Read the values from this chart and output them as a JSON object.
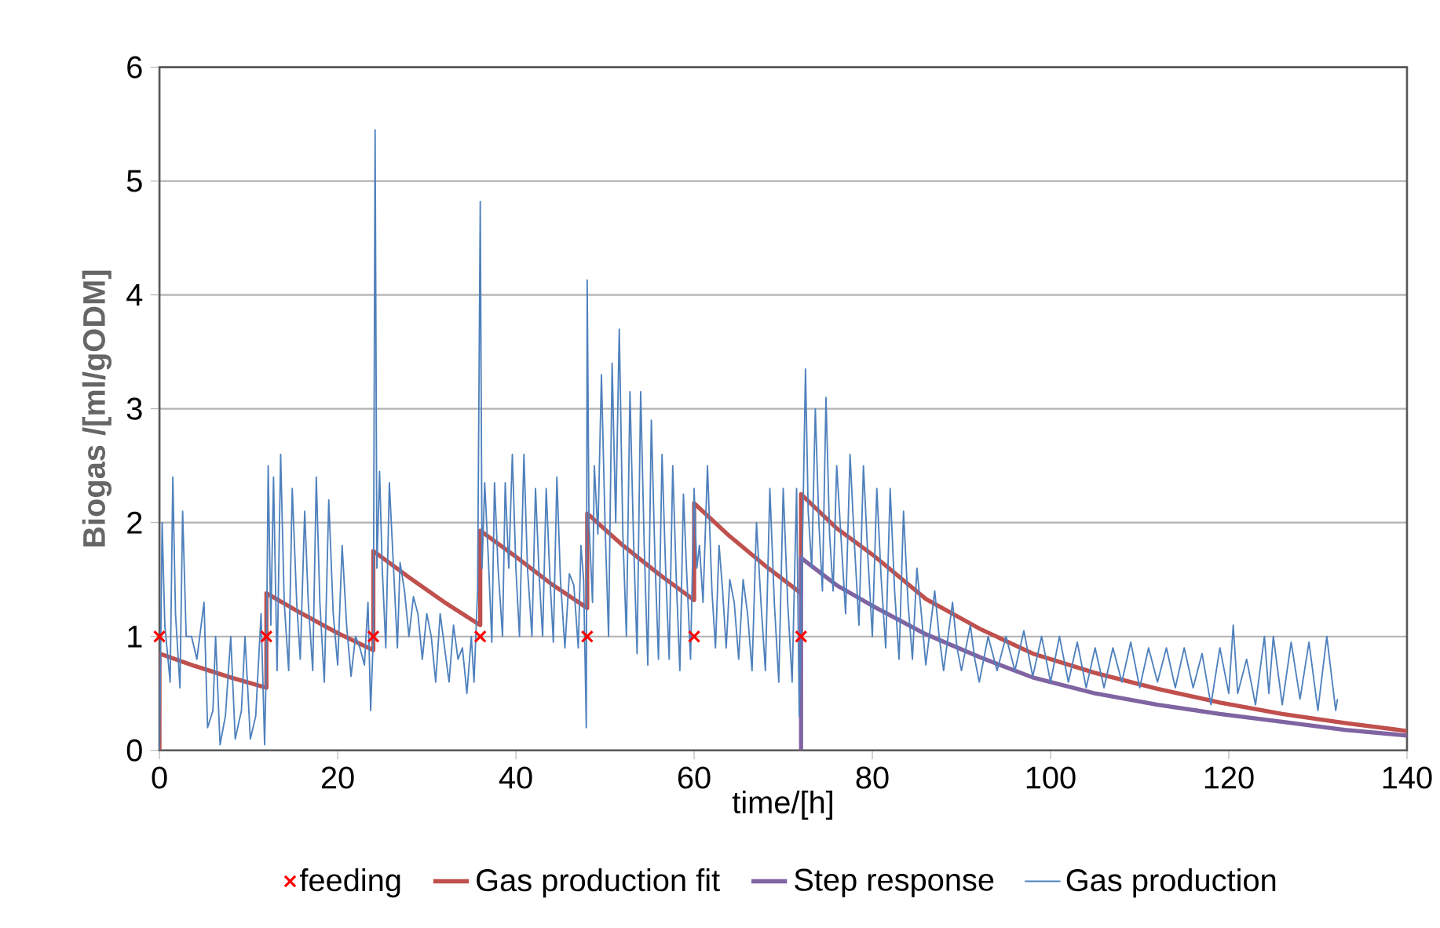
{
  "chart_data": {
    "type": "line",
    "xlabel": "time/[h]",
    "ylabel": "Biogas /[ml/gODM]",
    "xlim": [
      0,
      140
    ],
    "xticks": [
      0,
      20,
      40,
      60,
      80,
      100,
      120,
      140
    ],
    "ylim": [
      0,
      6
    ],
    "yticks": [
      0,
      1,
      2,
      3,
      4,
      5,
      6
    ],
    "grid": "y",
    "legend": "bottom",
    "series": [
      {
        "name": "feeding",
        "type": "scatter",
        "marker": "cross",
        "color": "#ff0000",
        "x": [
          0,
          12,
          24,
          36,
          48,
          60,
          72
        ],
        "values": [
          1,
          1,
          1,
          1,
          1,
          1,
          1
        ]
      },
      {
        "name": "Gas production fit",
        "color": "#c0504d",
        "x": [
          0,
          0,
          4,
          8,
          12,
          12,
          16,
          20,
          24,
          24,
          28,
          32,
          36,
          36,
          40,
          44,
          48,
          48,
          52,
          56,
          60,
          60,
          64,
          68,
          72,
          72,
          76,
          80,
          86,
          92,
          98,
          105,
          112,
          119,
          126,
          133,
          140
        ],
        "values": [
          0,
          0.85,
          0.74,
          0.64,
          0.55,
          1.38,
          1.2,
          1.03,
          0.88,
          1.75,
          1.52,
          1.3,
          1.1,
          1.93,
          1.7,
          1.46,
          1.25,
          2.08,
          1.8,
          1.55,
          1.32,
          2.17,
          1.88,
          1.62,
          1.38,
          2.25,
          1.95,
          1.72,
          1.33,
          1.07,
          0.85,
          0.68,
          0.54,
          0.42,
          0.32,
          0.24,
          0.17
        ]
      },
      {
        "name": "Step response",
        "color": "#8064a2",
        "x": [
          72,
          72,
          76,
          80,
          86,
          92,
          98,
          105,
          112,
          119,
          126,
          133,
          140
        ],
        "values": [
          0,
          1.69,
          1.45,
          1.27,
          1.02,
          0.82,
          0.64,
          0.5,
          0.4,
          0.32,
          0.25,
          0.18,
          0.13
        ]
      },
      {
        "name": "Gas production",
        "color": "#4f81bd",
        "x": [
          0,
          0.3,
          0.6,
          1.2,
          1.5,
          1.8,
          2.3,
          2.6,
          3.0,
          3.6,
          4.2,
          5.0,
          5.4,
          6.0,
          6.3,
          6.8,
          7.4,
          8.0,
          8.5,
          9.2,
          9.6,
          10.2,
          10.8,
          11.4,
          11.8,
          12.0,
          12.2,
          12.5,
          12.8,
          13.2,
          13.6,
          14.0,
          14.5,
          14.9,
          15.4,
          15.8,
          16.3,
          16.7,
          17.2,
          17.6,
          18.0,
          18.5,
          19.0,
          19.5,
          20.0,
          20.5,
          21.0,
          21.5,
          22.0,
          22.5,
          23.0,
          23.4,
          23.7,
          24.0,
          24.2,
          24.4,
          24.7,
          25.0,
          25.4,
          25.8,
          26.3,
          26.7,
          27.0,
          27.5,
          28.0,
          28.5,
          29.0,
          29.5,
          30.0,
          30.5,
          31.0,
          31.5,
          32.0,
          32.5,
          33.0,
          33.5,
          34.0,
          34.5,
          35.0,
          35.3,
          35.7,
          36.0,
          36.2,
          36.5,
          36.9,
          37.3,
          37.6,
          38.0,
          38.5,
          38.8,
          39.2,
          39.6,
          40.0,
          40.4,
          40.9,
          41.3,
          41.8,
          42.2,
          42.6,
          43.0,
          43.4,
          43.8,
          44.2,
          44.6,
          45.0,
          45.5,
          46.0,
          46.5,
          47.0,
          47.3,
          47.6,
          47.9,
          48.0,
          48.2,
          48.6,
          48.8,
          49.2,
          49.6,
          50.0,
          50.4,
          50.8,
          51.2,
          51.6,
          52.0,
          52.4,
          52.8,
          53.2,
          53.6,
          54.0,
          54.4,
          54.8,
          55.2,
          55.6,
          56.0,
          56.4,
          56.8,
          57.2,
          57.6,
          58.0,
          58.4,
          58.8,
          59.2,
          59.6,
          60.0,
          60.3,
          60.6,
          61.0,
          61.5,
          62.0,
          62.4,
          62.8,
          63.2,
          63.6,
          64.0,
          64.5,
          65.0,
          65.5,
          66.0,
          66.5,
          67.0,
          67.5,
          68.0,
          68.5,
          69.0,
          69.5,
          70.0,
          70.5,
          71.0,
          71.5,
          71.8,
          72.2,
          72.5,
          72.8,
          73.2,
          73.6,
          74.0,
          74.4,
          74.8,
          75.2,
          75.6,
          76.0,
          76.5,
          77.0,
          77.5,
          78.0,
          78.5,
          79.0,
          79.5,
          80.0,
          80.5,
          81.0,
          81.5,
          82.0,
          82.5,
          83.0,
          83.5,
          84.0,
          84.5,
          85.0,
          85.5,
          86.0,
          87.0,
          87.5,
          88.0,
          89.0,
          89.5,
          90.0,
          91.0,
          91.5,
          92.0,
          93.0,
          94.0,
          95.0,
          96.0,
          97.0,
          98.0,
          99.0,
          100.0,
          101.0,
          102.0,
          103,
          104,
          105,
          106,
          107,
          108,
          109,
          110,
          111,
          112,
          113,
          114,
          115,
          116,
          117,
          118,
          119,
          120,
          120.5,
          121,
          122,
          123,
          124,
          124.5,
          125,
          126,
          127,
          128,
          129,
          130,
          131,
          132,
          132.2
        ],
        "values": [
          0,
          2.0,
          1.1,
          0.6,
          2.4,
          1.2,
          0.55,
          2.1,
          1.0,
          1.0,
          0.8,
          1.3,
          0.2,
          0.35,
          1.0,
          0.05,
          0.3,
          1.0,
          0.1,
          0.35,
          1.0,
          0.1,
          0.3,
          1.2,
          0.05,
          0.8,
          2.5,
          1.1,
          2.4,
          0.7,
          2.6,
          1.3,
          0.7,
          2.3,
          1.3,
          0.8,
          2.1,
          1.3,
          0.7,
          2.4,
          1.3,
          0.6,
          2.2,
          1.2,
          0.75,
          1.8,
          1.1,
          0.65,
          1.0,
          0.9,
          0.75,
          1.3,
          0.35,
          1.0,
          5.45,
          1.6,
          2.45,
          1.6,
          0.9,
          2.35,
          1.55,
          0.9,
          1.65,
          1.4,
          1.0,
          1.35,
          1.2,
          0.8,
          1.2,
          1.0,
          0.6,
          1.2,
          0.9,
          0.6,
          1.1,
          0.8,
          0.9,
          0.5,
          1.0,
          0.6,
          1.4,
          4.82,
          1.6,
          2.35,
          1.7,
          0.95,
          2.35,
          1.6,
          1.0,
          2.35,
          1.6,
          2.6,
          1.6,
          1.0,
          2.6,
          1.6,
          1.0,
          2.3,
          1.55,
          1.0,
          2.3,
          1.55,
          0.95,
          2.4,
          1.5,
          0.9,
          1.55,
          1.45,
          0.9,
          1.8,
          1.5,
          0.2,
          4.13,
          2.0,
          1.3,
          2.5,
          1.9,
          3.3,
          2.0,
          1.0,
          3.4,
          2.0,
          3.7,
          1.9,
          1.0,
          3.15,
          1.85,
          0.85,
          3.15,
          1.8,
          0.75,
          2.9,
          1.7,
          0.8,
          2.6,
          1.6,
          0.8,
          2.5,
          1.5,
          0.7,
          2.25,
          1.5,
          0.8,
          2.3,
          1.6,
          1.8,
          1.3,
          2.5,
          1.4,
          0.9,
          1.8,
          1.4,
          0.9,
          1.5,
          1.3,
          0.8,
          1.5,
          1.2,
          0.7,
          2.0,
          1.3,
          0.7,
          2.3,
          1.3,
          0.6,
          2.3,
          1.3,
          0.6,
          2.3,
          0.3,
          2.0,
          3.35,
          2.1,
          1.6,
          3.0,
          2.0,
          1.4,
          3.1,
          1.9,
          1.4,
          2.5,
          1.85,
          1.2,
          2.6,
          1.8,
          1.1,
          2.5,
          1.7,
          1.0,
          2.3,
          1.5,
          0.9,
          2.3,
          1.4,
          0.8,
          2.1,
          1.3,
          0.8,
          1.6,
          1.2,
          0.75,
          1.4,
          1.0,
          0.7,
          1.3,
          0.9,
          0.7,
          1.1,
          0.8,
          0.6,
          1.0,
          0.7,
          1.0,
          0.7,
          1.05,
          0.65,
          1.0,
          0.6,
          1.0,
          0.6,
          0.95,
          0.55,
          0.9,
          0.55,
          0.9,
          0.6,
          0.95,
          0.55,
          0.9,
          0.6,
          0.9,
          0.55,
          0.9,
          0.55,
          0.85,
          0.4,
          0.9,
          0.5,
          1.1,
          0.5,
          0.8,
          0.4,
          1.0,
          0.5,
          1.0,
          0.4,
          0.95,
          0.45,
          0.95,
          0.35,
          1.0,
          0.35,
          0.45
        ]
      }
    ]
  }
}
